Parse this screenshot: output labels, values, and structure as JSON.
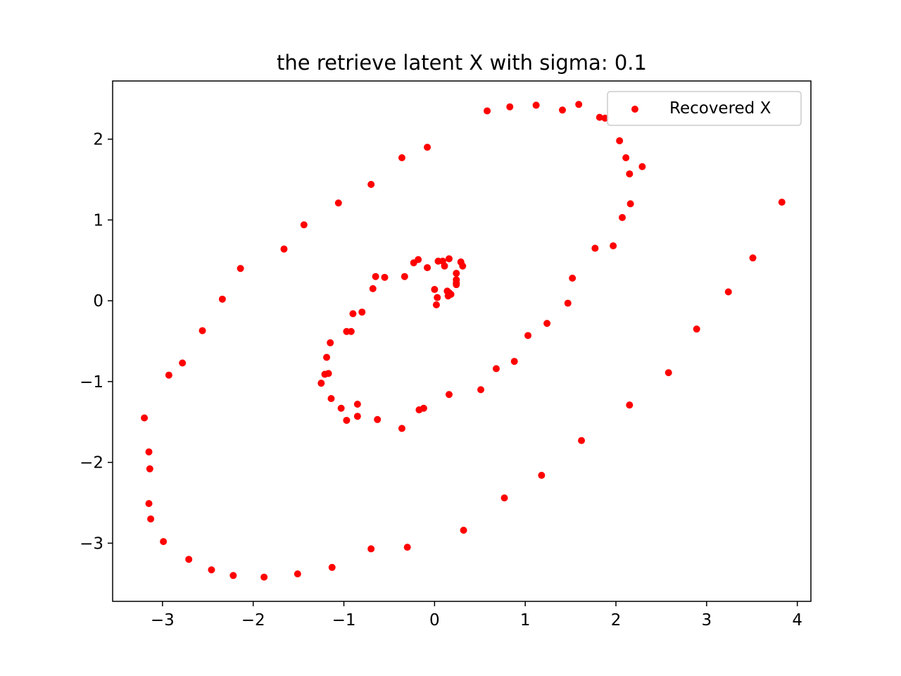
{
  "chart_data": {
    "type": "scatter",
    "title": "the retrieve latent X with sigma: 0.1",
    "xlabel": "",
    "ylabel": "",
    "xlim": [
      -3.55,
      4.15
    ],
    "ylim": [
      -3.72,
      2.72
    ],
    "x_ticks": [
      -3,
      -2,
      -1,
      0,
      1,
      2,
      3,
      4
    ],
    "x_tick_labels": [
      "−3",
      "−2",
      "−1",
      "0",
      "1",
      "2",
      "3",
      "4"
    ],
    "y_ticks": [
      -3,
      -2,
      -1,
      0,
      1,
      2
    ],
    "y_tick_labels": [
      "−3",
      "−2",
      "−1",
      "0",
      "1",
      "2"
    ],
    "grid": false,
    "legend_position": "top-right",
    "series": [
      {
        "name": "Recovered X",
        "color": "#ff0000",
        "x": [
          0.58,
          0.83,
          1.12,
          1.41,
          1.59,
          1.82,
          1.88,
          2.04,
          2.11,
          2.15,
          2.29,
          2.16,
          2.07,
          1.97,
          1.77,
          1.52,
          1.47,
          1.24,
          1.03,
          0.88,
          0.68,
          0.51,
          0.16,
          -0.12,
          -0.17,
          -0.36,
          -0.63,
          -0.85,
          -0.97,
          -1.03,
          -1.14,
          -1.25,
          -1.17,
          -1.21,
          -1.19,
          -1.15,
          -0.97,
          -0.92,
          -0.9,
          -0.8,
          -0.68,
          -0.65,
          -0.55,
          -0.33,
          -0.23,
          -0.18,
          -0.08,
          0.04,
          0.11,
          0.16,
          0.29,
          0.31,
          0.24,
          0.24,
          0.24,
          0.16,
          0.18,
          0.15,
          0.14,
          0.0,
          0.03,
          0.02,
          0.09,
          0.24,
          -0.08,
          -0.36,
          -0.7,
          -1.06,
          -1.44,
          -1.66,
          -2.14,
          -2.34,
          -2.56,
          -2.78,
          -2.93,
          -3.2,
          -3.15,
          -3.14,
          -3.15,
          -3.13,
          -2.99,
          -2.71,
          -2.46,
          -2.22,
          -1.88,
          -1.51,
          -1.13,
          -0.7,
          -0.3,
          0.32,
          0.77,
          1.18,
          1.62,
          2.15,
          2.58,
          2.89,
          3.24,
          3.51,
          3.83,
          -0.85
        ],
        "y": [
          2.35,
          2.4,
          2.42,
          2.36,
          2.43,
          2.27,
          2.26,
          1.98,
          1.77,
          1.57,
          1.66,
          1.2,
          1.03,
          0.68,
          0.65,
          0.28,
          -0.03,
          -0.28,
          -0.43,
          -0.75,
          -0.84,
          -1.1,
          -1.16,
          -1.33,
          -1.35,
          -1.58,
          -1.47,
          -1.43,
          -1.48,
          -1.33,
          -1.21,
          -1.02,
          -0.9,
          -0.91,
          -0.7,
          -0.52,
          -0.38,
          -0.38,
          -0.16,
          -0.14,
          0.15,
          0.3,
          0.29,
          0.3,
          0.47,
          0.51,
          0.41,
          0.49,
          0.43,
          0.52,
          0.48,
          0.43,
          0.34,
          0.26,
          0.2,
          0.1,
          0.08,
          0.06,
          0.12,
          0.14,
          0.04,
          -0.05,
          0.49,
          0.22,
          1.9,
          1.77,
          1.44,
          1.21,
          0.94,
          0.64,
          0.4,
          0.02,
          -0.37,
          -0.77,
          -0.92,
          -1.45,
          -1.87,
          -2.08,
          -2.51,
          -2.7,
          -2.98,
          -3.2,
          -3.33,
          -3.4,
          -3.42,
          -3.38,
          -3.3,
          -3.07,
          -3.05,
          -2.84,
          -2.44,
          -2.16,
          -1.73,
          -1.29,
          -0.89,
          -0.35,
          0.11,
          0.53,
          1.22,
          -1.28
        ]
      }
    ]
  }
}
